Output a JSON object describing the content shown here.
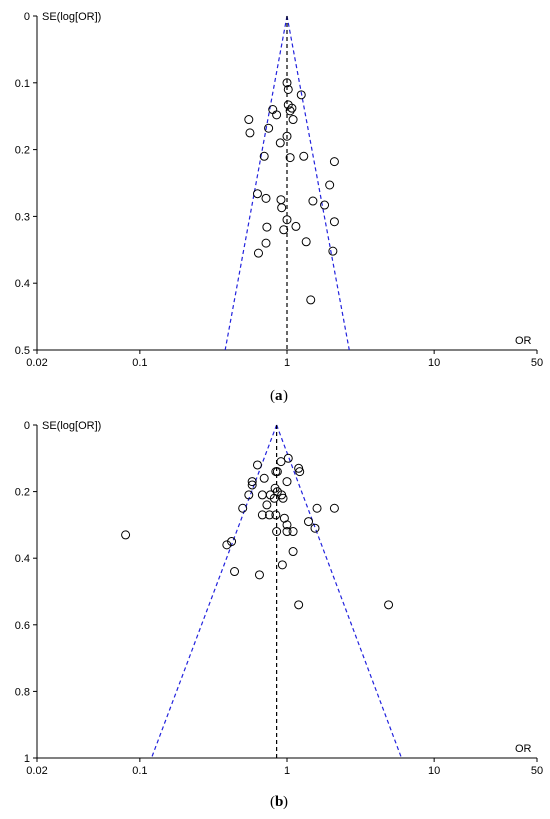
{
  "chart_data": [
    {
      "type": "scatter",
      "panel_label": "a",
      "xlabel": "OR",
      "ylabel": "SE(log[OR])",
      "x_scale": "log",
      "xlim": [
        0.02,
        50
      ],
      "ylim": [
        0,
        0.5
      ],
      "y_inverted": true,
      "xticks": [
        "0.02",
        "0.1",
        "1",
        "10",
        "50"
      ],
      "yticks": [
        "0",
        "0.1",
        "0.2",
        "0.3",
        "0.4",
        "0.5"
      ],
      "pooled_or": 1.0,
      "funnel_base": [
        0.38,
        2.65
      ],
      "points": [
        [
          1.0,
          0.1
        ],
        [
          1.25,
          0.118
        ],
        [
          1.02,
          0.11
        ],
        [
          1.02,
          0.133
        ],
        [
          1.08,
          0.138
        ],
        [
          1.05,
          0.142
        ],
        [
          0.85,
          0.148
        ],
        [
          0.8,
          0.14
        ],
        [
          1.1,
          0.155
        ],
        [
          0.55,
          0.155
        ],
        [
          0.56,
          0.175
        ],
        [
          0.75,
          0.168
        ],
        [
          1.0,
          0.18
        ],
        [
          0.9,
          0.19
        ],
        [
          0.7,
          0.21
        ],
        [
          1.05,
          0.212
        ],
        [
          1.3,
          0.21
        ],
        [
          2.1,
          0.218
        ],
        [
          1.95,
          0.253
        ],
        [
          0.63,
          0.266
        ],
        [
          0.72,
          0.273
        ],
        [
          0.91,
          0.275
        ],
        [
          0.92,
          0.287
        ],
        [
          1.5,
          0.277
        ],
        [
          1.8,
          0.283
        ],
        [
          1.0,
          0.305
        ],
        [
          2.1,
          0.308
        ],
        [
          0.73,
          0.316
        ],
        [
          1.15,
          0.315
        ],
        [
          0.95,
          0.32
        ],
        [
          1.35,
          0.338
        ],
        [
          0.72,
          0.34
        ],
        [
          0.64,
          0.355
        ],
        [
          2.05,
          0.352
        ],
        [
          1.45,
          0.425
        ]
      ]
    },
    {
      "type": "scatter",
      "panel_label": "b",
      "xlabel": "OR",
      "ylabel": "SE(log[OR])",
      "x_scale": "log",
      "xlim": [
        0.02,
        50
      ],
      "ylim": [
        0,
        1
      ],
      "y_inverted": true,
      "xticks": [
        "0.02",
        "0.1",
        "1",
        "10",
        "50"
      ],
      "yticks": [
        "0",
        "0.2",
        "0.4",
        "0.6",
        "0.8",
        "1"
      ],
      "pooled_or": 0.85,
      "funnel_base": [
        0.12,
        6.0
      ],
      "points": [
        [
          1.02,
          0.1
        ],
        [
          0.91,
          0.11
        ],
        [
          0.63,
          0.12
        ],
        [
          1.2,
          0.13
        ],
        [
          1.22,
          0.14
        ],
        [
          0.84,
          0.14
        ],
        [
          0.86,
          0.14
        ],
        [
          0.7,
          0.16
        ],
        [
          1.0,
          0.17
        ],
        [
          0.58,
          0.17
        ],
        [
          0.58,
          0.18
        ],
        [
          0.83,
          0.19
        ],
        [
          0.86,
          0.2
        ],
        [
          0.77,
          0.21
        ],
        [
          0.68,
          0.21
        ],
        [
          0.92,
          0.21
        ],
        [
          0.55,
          0.21
        ],
        [
          0.82,
          0.22
        ],
        [
          0.94,
          0.22
        ],
        [
          0.73,
          0.24
        ],
        [
          0.5,
          0.25
        ],
        [
          1.6,
          0.25
        ],
        [
          2.1,
          0.25
        ],
        [
          0.68,
          0.27
        ],
        [
          0.76,
          0.27
        ],
        [
          0.84,
          0.27
        ],
        [
          0.96,
          0.28
        ],
        [
          1.4,
          0.29
        ],
        [
          1.0,
          0.3
        ],
        [
          1.55,
          0.31
        ],
        [
          0.85,
          0.32
        ],
        [
          1.0,
          0.32
        ],
        [
          1.1,
          0.32
        ],
        [
          0.08,
          0.33
        ],
        [
          0.42,
          0.35
        ],
        [
          0.39,
          0.36
        ],
        [
          1.1,
          0.38
        ],
        [
          0.93,
          0.42
        ],
        [
          0.44,
          0.44
        ],
        [
          0.65,
          0.45
        ],
        [
          1.2,
          0.54
        ],
        [
          4.9,
          0.54
        ]
      ]
    }
  ]
}
